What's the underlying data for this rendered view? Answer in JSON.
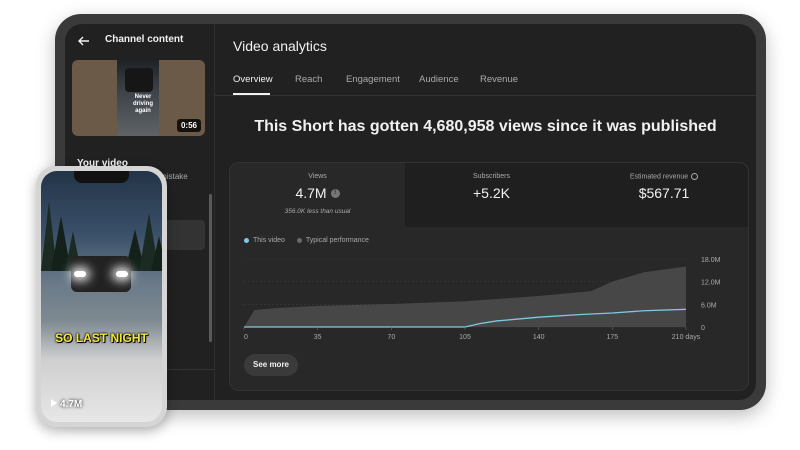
{
  "sidebar": {
    "title": "Channel content",
    "thumbnail": {
      "duration": "0:56",
      "overlay_text": "Never driving again"
    },
    "your_video_label": "Your video",
    "video_title": "Pulling over was a BIG mistake"
  },
  "main": {
    "title": "Video analytics",
    "tabs": [
      {
        "label": "Overview",
        "active": true
      },
      {
        "label": "Reach",
        "active": false
      },
      {
        "label": "Engagement",
        "active": false
      },
      {
        "label": "Audience",
        "active": false
      },
      {
        "label": "Revenue",
        "active": false
      }
    ],
    "headline": "This Short has gotten 4,680,958 views since it was published",
    "metrics": [
      {
        "label": "Views",
        "value": "4.7M",
        "sub": "356.0K less than usual"
      },
      {
        "label": "Subscribers",
        "value": "+5.2K"
      },
      {
        "label": "Estimated revenue",
        "value": "$567.71"
      }
    ],
    "see_more_label": "See more"
  },
  "chart_data": {
    "type": "area",
    "legend": [
      {
        "name": "This video",
        "color": "#7ec8e3"
      },
      {
        "name": "Typical performance",
        "color": "#5a5a5a"
      }
    ],
    "x_ticks": [
      "0",
      "35",
      "70",
      "105",
      "140",
      "175",
      "210 days"
    ],
    "y_ticks": [
      "0",
      "6.0M",
      "12.0M",
      "18.0M"
    ],
    "ylim": [
      0,
      18000000
    ],
    "xlim": [
      0,
      210
    ],
    "series": [
      {
        "name": "This video",
        "type": "line",
        "x": [
          0,
          105,
          112,
          120,
          140,
          160,
          175,
          190,
          210
        ],
        "y": [
          0,
          0,
          900000,
          1600000,
          2600000,
          3300000,
          3700000,
          4300000,
          4680958
        ]
      },
      {
        "name": "Typical performance",
        "type": "area",
        "x": [
          0,
          5,
          15,
          35,
          70,
          105,
          140,
          165,
          175,
          190,
          210
        ],
        "y": [
          0,
          4500000,
          5000000,
          5600000,
          6100000,
          6800000,
          8200000,
          9500000,
          12000000,
          14500000,
          16000000
        ]
      }
    ]
  },
  "phone": {
    "caption": "SO LAST NIGHT",
    "views": "4.7M"
  }
}
